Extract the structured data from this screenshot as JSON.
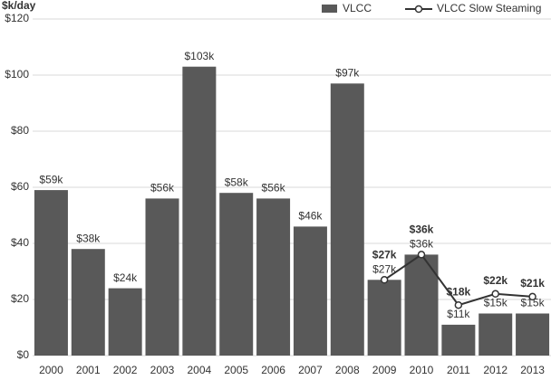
{
  "chart_data": {
    "type": "bar",
    "y_axis_label": "$k/day",
    "categories": [
      "2000",
      "2001",
      "2002",
      "2003",
      "2004",
      "2005",
      "2006",
      "2007",
      "2008",
      "2009",
      "2010",
      "2011",
      "2012",
      "2013"
    ],
    "series": [
      {
        "name": "VLCC",
        "type": "bar",
        "color": "#595959",
        "values": [
          59,
          38,
          24,
          56,
          103,
          58,
          56,
          46,
          97,
          27,
          36,
          11,
          15,
          15
        ],
        "value_labels": [
          "$59k",
          "$38k",
          "$24k",
          "$56k",
          "$103k",
          "$58k",
          "$56k",
          "$46k",
          "$97k",
          "$27k",
          "$36k",
          "$11k",
          "$15k",
          "$15k"
        ]
      },
      {
        "name": "VLCC Slow Steaming",
        "type": "line",
        "color": "#333333",
        "values": [
          null,
          null,
          null,
          null,
          null,
          null,
          null,
          null,
          null,
          27,
          36,
          18,
          22,
          21
        ],
        "value_labels": [
          null,
          null,
          null,
          null,
          null,
          null,
          null,
          null,
          null,
          "$27k",
          "$36k",
          "$18k",
          "$22k",
          "$21k"
        ]
      }
    ],
    "ylim": [
      0,
      120
    ],
    "yticks": [
      {
        "value": 0,
        "label": "$0"
      },
      {
        "value": 20,
        "label": "$20"
      },
      {
        "value": 40,
        "label": "$40"
      },
      {
        "value": 60,
        "label": "$60"
      },
      {
        "value": 80,
        "label": "$80"
      },
      {
        "value": 100,
        "label": "$100"
      },
      {
        "value": 120,
        "label": "$120"
      }
    ],
    "grid": true,
    "legend": "top-right"
  }
}
